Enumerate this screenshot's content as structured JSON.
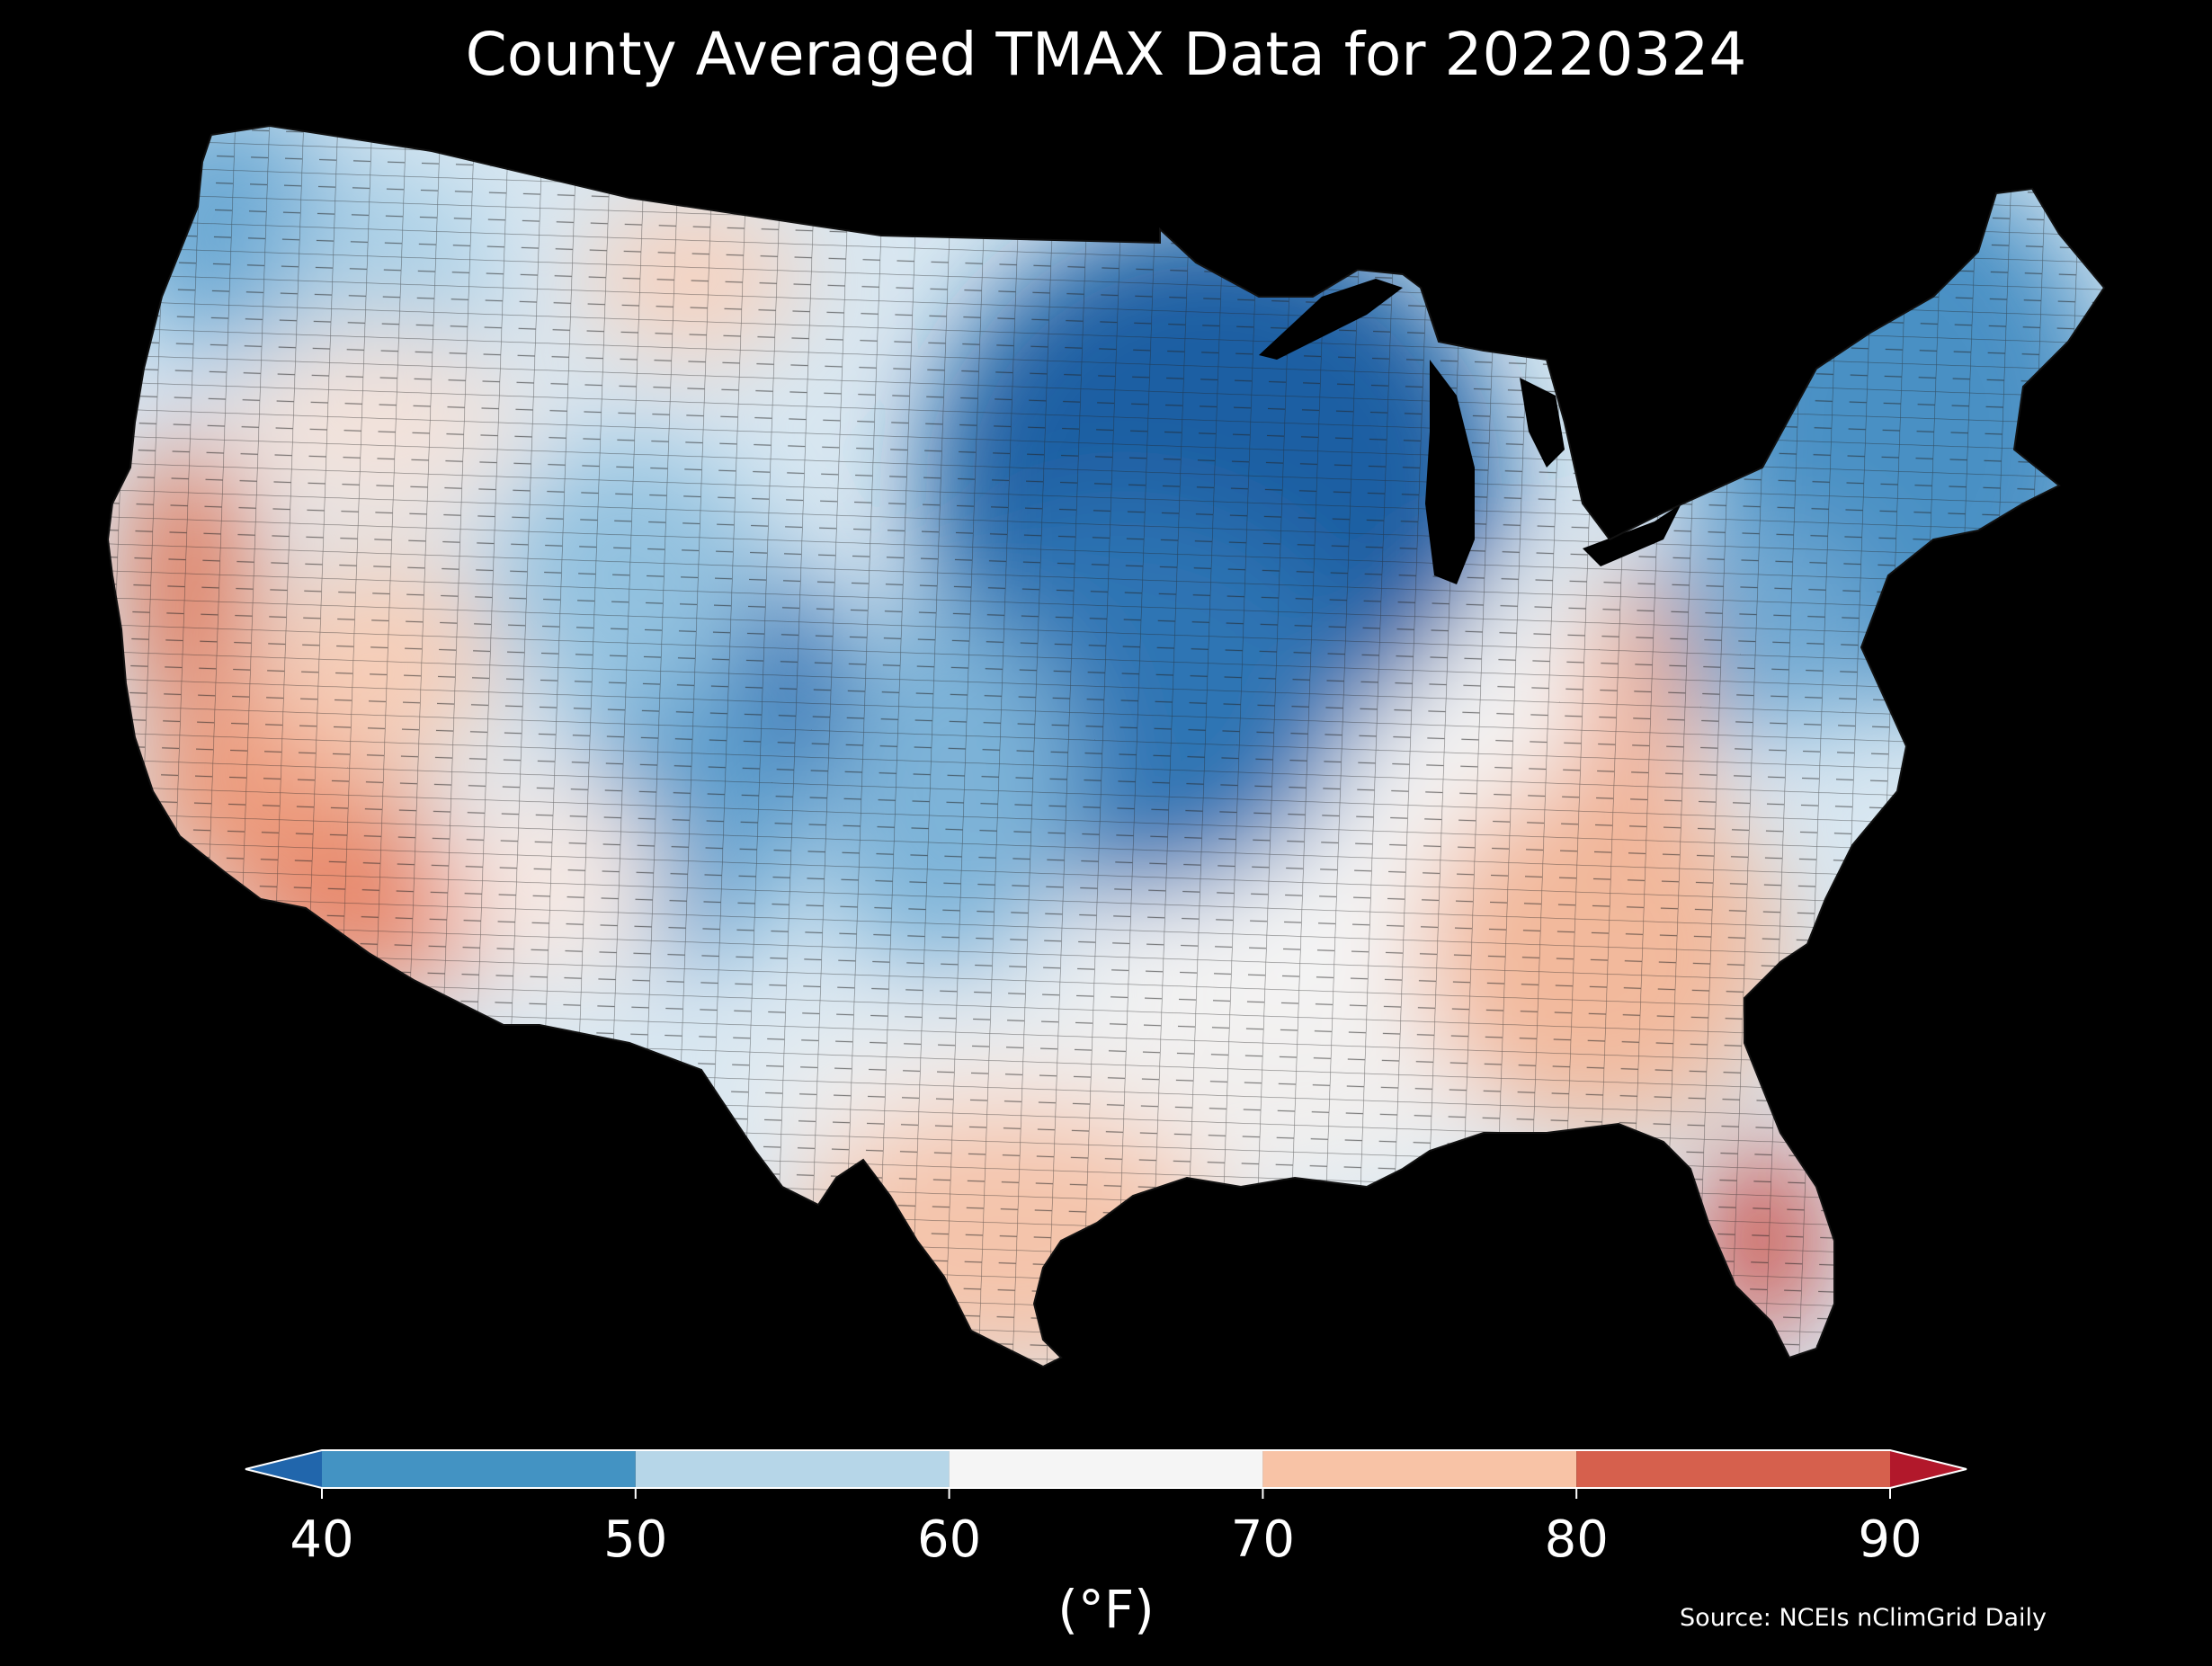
{
  "title": "County Averaged TMAX Data for 20220324",
  "source": "Source: NCEIs nClimGrid Daily",
  "colorbar": {
    "unit_label": "(°F)",
    "ticks": [
      "40",
      "50",
      "60",
      "70",
      "80",
      "90"
    ],
    "bins": [
      {
        "range": [
          null,
          40
        ],
        "color": "#2166ac",
        "extend": "min"
      },
      {
        "range": [
          40,
          50
        ],
        "color": "#4393c3"
      },
      {
        "range": [
          50,
          60
        ],
        "color": "#b6d6e8"
      },
      {
        "range": [
          60,
          70
        ],
        "color": "#f5f5f5"
      },
      {
        "range": [
          70,
          80
        ],
        "color": "#f8c3a6"
      },
      {
        "range": [
          80,
          90
        ],
        "color": "#d6604d"
      },
      {
        "range": [
          90,
          null
        ],
        "color": "#b2182b",
        "extend": "max"
      }
    ]
  },
  "map": {
    "region": "Contiguous United States (county level)",
    "variable": "TMAX",
    "regions": [
      {
        "name": "Pacific Northwest",
        "bin": "40-50"
      },
      {
        "name": "Northern Rockies / High Plains",
        "bin": "60-70"
      },
      {
        "name": "California Central Valley",
        "bin": "80-90"
      },
      {
        "name": "Southern California / Arizona",
        "bin": "70-80"
      },
      {
        "name": "Colorado Rockies",
        "bin": "<40"
      },
      {
        "name": "Upper Midwest",
        "bin": "<40"
      },
      {
        "name": "Central Plains",
        "bin": "40-50"
      },
      {
        "name": "Ohio Valley / Mid-South",
        "bin": "60-70"
      },
      {
        "name": "Appalachians / Southeast",
        "bin": "70-80"
      },
      {
        "name": "Northeast",
        "bin": "40-50"
      },
      {
        "name": "Gulf Coast / Texas",
        "bin": "70-80"
      },
      {
        "name": "South Florida",
        "bin": "80-90"
      }
    ]
  }
}
